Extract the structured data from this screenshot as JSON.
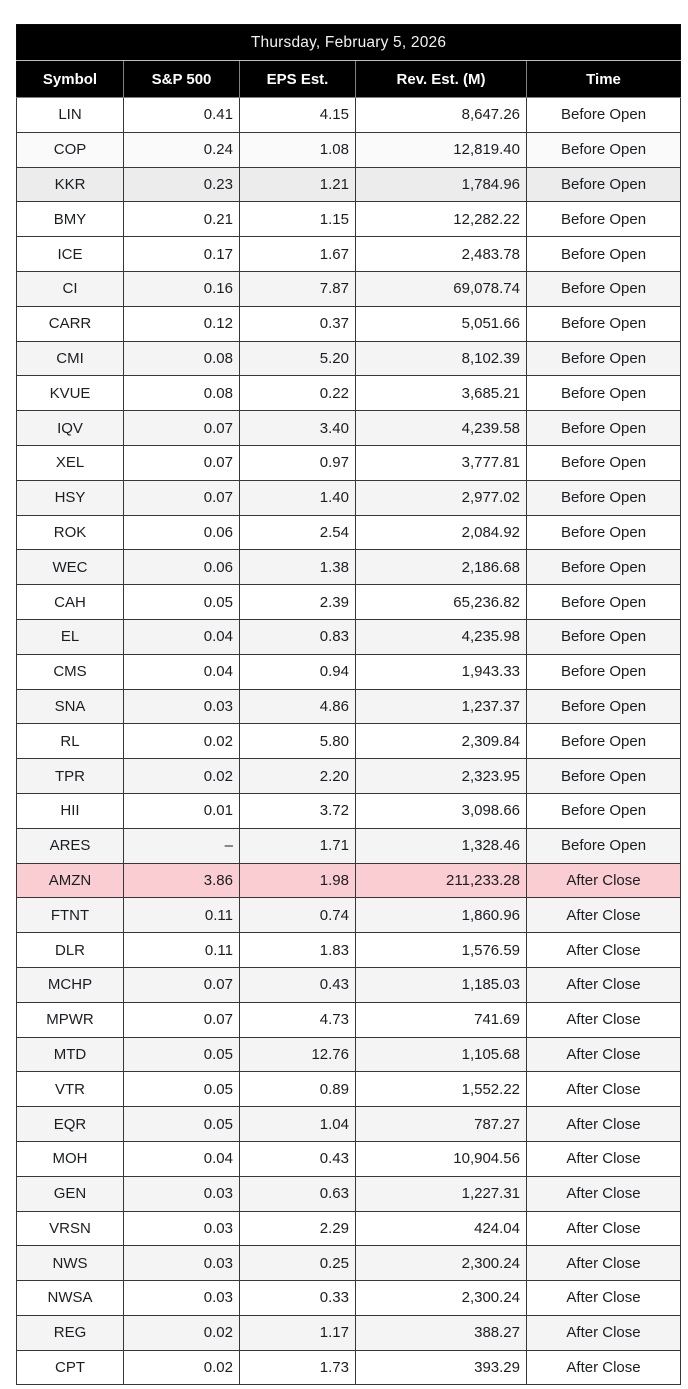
{
  "colors": {
    "header_bg": "#000000",
    "header_text": "#ffffff",
    "date_text": "#f2f2f2",
    "body_text": "#1a1d22",
    "row_white": "#ffffff",
    "row_stripe": "#f4f4f4",
    "row_stripe_faint": "#fafafa",
    "row_hover": "#ececec",
    "row_highlight": "#f9cdd1",
    "border_body": "#373737",
    "border_header": "#808080"
  },
  "chart_data": {
    "type": "table",
    "title": "Thursday, February 5, 2026",
    "columns": [
      "Symbol",
      "S&P 500",
      "EPS Est.",
      "Rev. Est. (M)",
      "Time"
    ],
    "highlighted_symbol": "AMZN",
    "rows": [
      {
        "symbol": "LIN",
        "sp500": "0.41",
        "eps": "4.15",
        "rev": "8,647.26",
        "time": "Before Open",
        "bg": "white"
      },
      {
        "symbol": "COP",
        "sp500": "0.24",
        "eps": "1.08",
        "rev": "12,819.40",
        "time": "Before Open",
        "bg": "stripe-faint"
      },
      {
        "symbol": "KKR",
        "sp500": "0.23",
        "eps": "1.21",
        "rev": "1,784.96",
        "time": "Before Open",
        "bg": "hover"
      },
      {
        "symbol": "BMY",
        "sp500": "0.21",
        "eps": "1.15",
        "rev": "12,282.22",
        "time": "Before Open",
        "bg": "white"
      },
      {
        "symbol": "ICE",
        "sp500": "0.17",
        "eps": "1.67",
        "rev": "2,483.78",
        "time": "Before Open",
        "bg": "white"
      },
      {
        "symbol": "CI",
        "sp500": "0.16",
        "eps": "7.87",
        "rev": "69,078.74",
        "time": "Before Open",
        "bg": "stripe"
      },
      {
        "symbol": "CARR",
        "sp500": "0.12",
        "eps": "0.37",
        "rev": "5,051.66",
        "time": "Before Open",
        "bg": "white"
      },
      {
        "symbol": "CMI",
        "sp500": "0.08",
        "eps": "5.20",
        "rev": "8,102.39",
        "time": "Before Open",
        "bg": "stripe"
      },
      {
        "symbol": "KVUE",
        "sp500": "0.08",
        "eps": "0.22",
        "rev": "3,685.21",
        "time": "Before Open",
        "bg": "white"
      },
      {
        "symbol": "IQV",
        "sp500": "0.07",
        "eps": "3.40",
        "rev": "4,239.58",
        "time": "Before Open",
        "bg": "stripe"
      },
      {
        "symbol": "XEL",
        "sp500": "0.07",
        "eps": "0.97",
        "rev": "3,777.81",
        "time": "Before Open",
        "bg": "white"
      },
      {
        "symbol": "HSY",
        "sp500": "0.07",
        "eps": "1.40",
        "rev": "2,977.02",
        "time": "Before Open",
        "bg": "stripe"
      },
      {
        "symbol": "ROK",
        "sp500": "0.06",
        "eps": "2.54",
        "rev": "2,084.92",
        "time": "Before Open",
        "bg": "white"
      },
      {
        "symbol": "WEC",
        "sp500": "0.06",
        "eps": "1.38",
        "rev": "2,186.68",
        "time": "Before Open",
        "bg": "stripe"
      },
      {
        "symbol": "CAH",
        "sp500": "0.05",
        "eps": "2.39",
        "rev": "65,236.82",
        "time": "Before Open",
        "bg": "white"
      },
      {
        "symbol": "EL",
        "sp500": "0.04",
        "eps": "0.83",
        "rev": "4,235.98",
        "time": "Before Open",
        "bg": "stripe"
      },
      {
        "symbol": "CMS",
        "sp500": "0.04",
        "eps": "0.94",
        "rev": "1,943.33",
        "time": "Before Open",
        "bg": "white"
      },
      {
        "symbol": "SNA",
        "sp500": "0.03",
        "eps": "4.86",
        "rev": "1,237.37",
        "time": "Before Open",
        "bg": "stripe"
      },
      {
        "symbol": "RL",
        "sp500": "0.02",
        "eps": "5.80",
        "rev": "2,309.84",
        "time": "Before Open",
        "bg": "white"
      },
      {
        "symbol": "TPR",
        "sp500": "0.02",
        "eps": "2.20",
        "rev": "2,323.95",
        "time": "Before Open",
        "bg": "stripe"
      },
      {
        "symbol": "HII",
        "sp500": "0.01",
        "eps": "3.72",
        "rev": "3,098.66",
        "time": "Before Open",
        "bg": "white"
      },
      {
        "symbol": "ARES",
        "sp500": "–",
        "eps": "1.71",
        "rev": "1,328.46",
        "time": "Before Open",
        "bg": "stripe"
      },
      {
        "symbol": "AMZN",
        "sp500": "3.86",
        "eps": "1.98",
        "rev": "211,233.28",
        "time": "After Close",
        "bg": "highlight"
      },
      {
        "symbol": "FTNT",
        "sp500": "0.11",
        "eps": "0.74",
        "rev": "1,860.96",
        "time": "After Close",
        "bg": "stripe"
      },
      {
        "symbol": "DLR",
        "sp500": "0.11",
        "eps": "1.83",
        "rev": "1,576.59",
        "time": "After Close",
        "bg": "white"
      },
      {
        "symbol": "MCHP",
        "sp500": "0.07",
        "eps": "0.43",
        "rev": "1,185.03",
        "time": "After Close",
        "bg": "stripe"
      },
      {
        "symbol": "MPWR",
        "sp500": "0.07",
        "eps": "4.73",
        "rev": "741.69",
        "time": "After Close",
        "bg": "white"
      },
      {
        "symbol": "MTD",
        "sp500": "0.05",
        "eps": "12.76",
        "rev": "1,105.68",
        "time": "After Close",
        "bg": "stripe"
      },
      {
        "symbol": "VTR",
        "sp500": "0.05",
        "eps": "0.89",
        "rev": "1,552.22",
        "time": "After Close",
        "bg": "white"
      },
      {
        "symbol": "EQR",
        "sp500": "0.05",
        "eps": "1.04",
        "rev": "787.27",
        "time": "After Close",
        "bg": "stripe"
      },
      {
        "symbol": "MOH",
        "sp500": "0.04",
        "eps": "0.43",
        "rev": "10,904.56",
        "time": "After Close",
        "bg": "white"
      },
      {
        "symbol": "GEN",
        "sp500": "0.03",
        "eps": "0.63",
        "rev": "1,227.31",
        "time": "After Close",
        "bg": "stripe"
      },
      {
        "symbol": "VRSN",
        "sp500": "0.03",
        "eps": "2.29",
        "rev": "424.04",
        "time": "After Close",
        "bg": "white"
      },
      {
        "symbol": "NWS",
        "sp500": "0.03",
        "eps": "0.25",
        "rev": "2,300.24",
        "time": "After Close",
        "bg": "stripe"
      },
      {
        "symbol": "NWSA",
        "sp500": "0.03",
        "eps": "0.33",
        "rev": "2,300.24",
        "time": "After Close",
        "bg": "white"
      },
      {
        "symbol": "REG",
        "sp500": "0.02",
        "eps": "1.17",
        "rev": "388.27",
        "time": "After Close",
        "bg": "stripe"
      },
      {
        "symbol": "CPT",
        "sp500": "0.02",
        "eps": "1.73",
        "rev": "393.29",
        "time": "After Close",
        "bg": "white"
      }
    ]
  }
}
